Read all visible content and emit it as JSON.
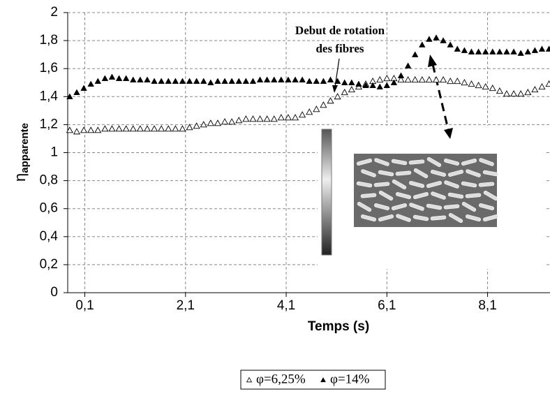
{
  "chart_data": {
    "type": "scatter",
    "annotation": [
      "Debut de rotation",
      "des fibres"
    ],
    "x_label": "Temps (s)",
    "y_label": "η",
    "y_label_sub": "apparente",
    "xlim": [
      -0.24,
      9.34
    ],
    "ylim": [
      0,
      2
    ],
    "xticks": [
      {
        "value": 0.1,
        "label": "0,1"
      },
      {
        "value": 2.1,
        "label": "2,1"
      },
      {
        "value": 4.1,
        "label": "4,1"
      },
      {
        "value": 6.1,
        "label": "6,1"
      },
      {
        "value": 8.1,
        "label": "8,1"
      }
    ],
    "yticks": [
      0,
      {
        "value": 0.2,
        "label": "0,2"
      },
      {
        "value": 0.4,
        "label": "0,4"
      },
      {
        "value": 0.6,
        "label": "0,6"
      },
      {
        "value": 0.8,
        "label": "0,8"
      },
      1,
      {
        "value": 1.2,
        "label": "1,2"
      },
      {
        "value": 1.4,
        "label": "1,4"
      },
      {
        "value": 1.6,
        "label": "1,6"
      },
      {
        "value": 1.8,
        "label": "1,8"
      },
      2
    ],
    "grid": true,
    "x": [
      -0.2,
      -0.06,
      0.08,
      0.22,
      0.36,
      0.5,
      0.64,
      0.78,
      0.92,
      1.06,
      1.2,
      1.34,
      1.48,
      1.62,
      1.76,
      1.9,
      2.04,
      2.18,
      2.32,
      2.46,
      2.6,
      2.74,
      2.88,
      3.02,
      3.16,
      3.3,
      3.44,
      3.58,
      3.72,
      3.86,
      4.0,
      4.14,
      4.28,
      4.42,
      4.56,
      4.7,
      4.84,
      4.98,
      5.12,
      5.26,
      5.4,
      5.54,
      5.68,
      5.82,
      5.96,
      6.1,
      6.24,
      6.38,
      6.52,
      6.66,
      6.8,
      6.94,
      7.08,
      7.22,
      7.36,
      7.5,
      7.64,
      7.78,
      7.92,
      8.06,
      8.2,
      8.34,
      8.48,
      8.62,
      8.76,
      8.9,
      9.04,
      9.18,
      9.32
    ],
    "series": [
      {
        "name": "φ=6,25%",
        "marker": "open-triangle",
        "color": "#000000",
        "values": [
          1.16,
          1.15,
          1.16,
          1.16,
          1.16,
          1.17,
          1.17,
          1.17,
          1.17,
          1.17,
          1.17,
          1.17,
          1.17,
          1.17,
          1.17,
          1.17,
          1.17,
          1.18,
          1.19,
          1.2,
          1.21,
          1.21,
          1.22,
          1.22,
          1.23,
          1.24,
          1.24,
          1.24,
          1.24,
          1.24,
          1.25,
          1.25,
          1.25,
          1.27,
          1.29,
          1.31,
          1.34,
          1.37,
          1.4,
          1.43,
          1.45,
          1.47,
          1.49,
          1.51,
          1.52,
          1.53,
          1.53,
          1.52,
          1.52,
          1.52,
          1.52,
          1.52,
          1.52,
          1.52,
          1.51,
          1.51,
          1.5,
          1.49,
          1.48,
          1.47,
          1.46,
          1.44,
          1.42,
          1.42,
          1.42,
          1.43,
          1.45,
          1.47,
          1.49
        ]
      },
      {
        "name": "φ=14%",
        "marker": "filled-triangle",
        "color": "#000000",
        "values": [
          1.4,
          1.43,
          1.46,
          1.49,
          1.51,
          1.53,
          1.54,
          1.53,
          1.53,
          1.52,
          1.52,
          1.52,
          1.51,
          1.51,
          1.51,
          1.51,
          1.51,
          1.51,
          1.51,
          1.51,
          1.5,
          1.51,
          1.51,
          1.51,
          1.51,
          1.51,
          1.51,
          1.52,
          1.52,
          1.52,
          1.52,
          1.52,
          1.52,
          1.52,
          1.51,
          1.51,
          1.51,
          1.52,
          1.51,
          1.5,
          1.5,
          1.49,
          1.48,
          1.48,
          1.47,
          1.48,
          1.5,
          1.55,
          1.62,
          1.7,
          1.77,
          1.81,
          1.82,
          1.8,
          1.77,
          1.74,
          1.73,
          1.72,
          1.72,
          1.72,
          1.72,
          1.72,
          1.72,
          1.72,
          1.71,
          1.72,
          1.73,
          1.74,
          1.74
        ]
      }
    ]
  }
}
